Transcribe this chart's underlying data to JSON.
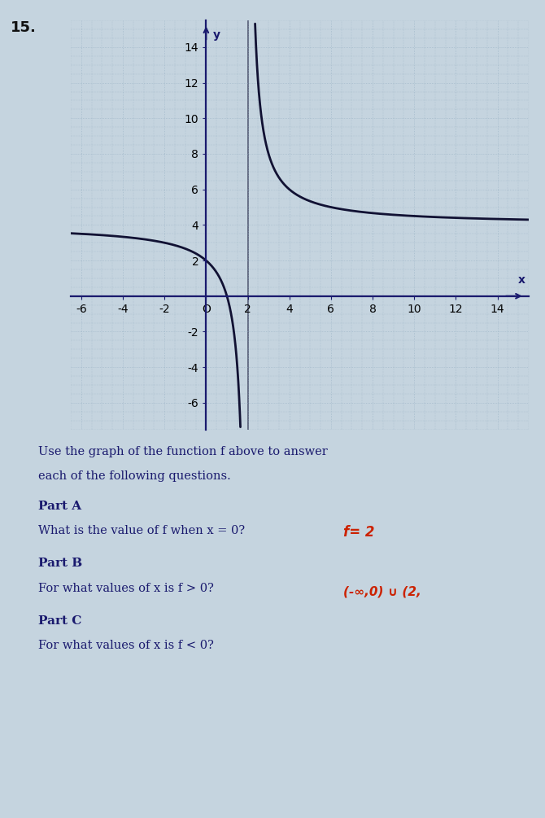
{
  "title_number": "15.",
  "xlim": [
    -6.5,
    15.5
  ],
  "ylim": [
    -7.5,
    15.5
  ],
  "xtick_values": [
    -6,
    -4,
    -2,
    0,
    2,
    4,
    6,
    8,
    10,
    12,
    14
  ],
  "ytick_values": [
    -6,
    -4,
    -2,
    0,
    2,
    4,
    6,
    8,
    10,
    12,
    14
  ],
  "xlabel": "x",
  "ylabel": "y",
  "func_a": 4,
  "func_k": 4,
  "func_shift": 2,
  "bg_color": "#c5d4df",
  "grid_color": "#8faabf",
  "curve_color": "#111133",
  "axis_color": "#1a1a6e",
  "text_color": "#1a1a6e",
  "instruction_line1": "Use the graph of the function f above to answer",
  "instruction_line2": "each of the following questions.",
  "part_a_bold": "Part A",
  "part_a_text": "What is the value of f when x = 0?",
  "part_a_answer": "f= 2",
  "part_b_bold": "Part B",
  "part_b_text": "For what values of x is f > 0?",
  "part_b_answer": "(-∞,0) ∪ (2,",
  "part_c_bold": "Part C",
  "part_c_text": "For what values of x is f < 0?",
  "answer_color": "#cc2200",
  "fig_width": 6.7,
  "fig_height": 10.05
}
